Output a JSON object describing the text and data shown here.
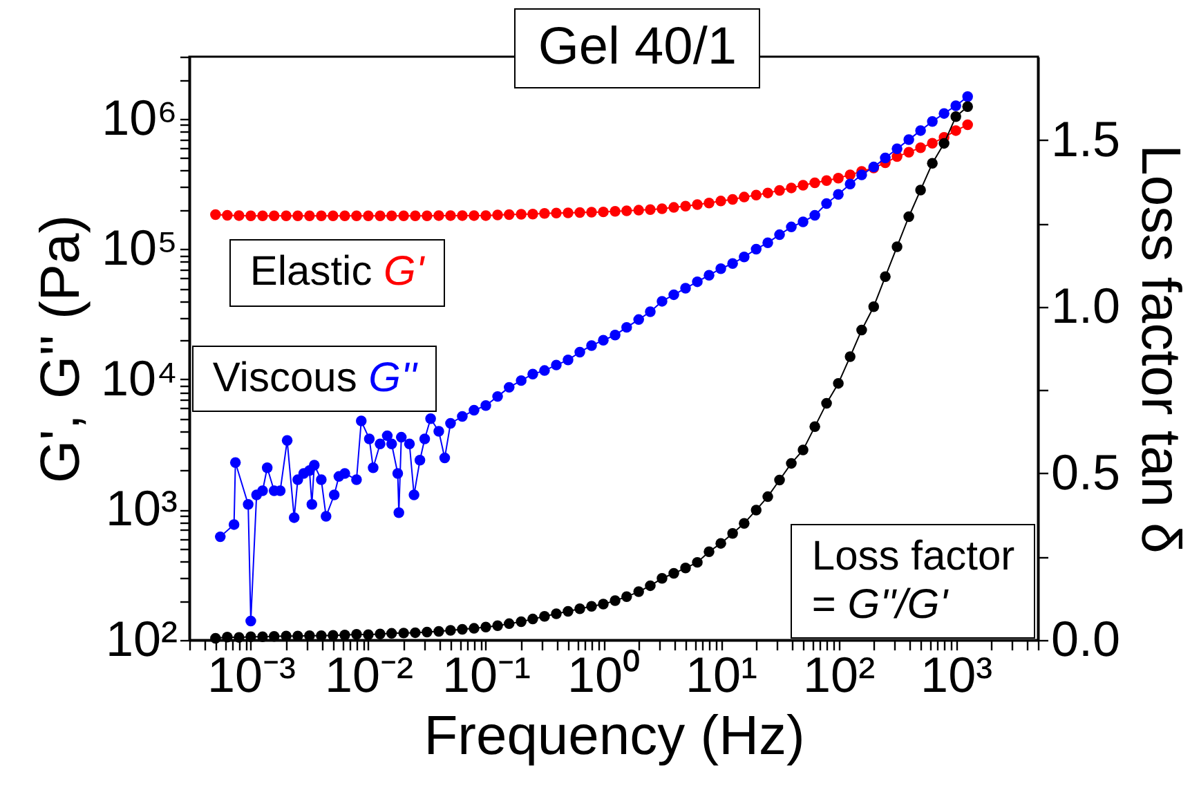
{
  "chart_data": {
    "type": "line",
    "title": "Gel 40/1",
    "xlabel": "Frequency (Hz)",
    "ylabel": "G', G'' (Pa)",
    "y2label": "Loss factor tan δ",
    "log": "xy",
    "marker": "circle",
    "xlim": [
      0.0003,
      5000
    ],
    "ylim": [
      100,
      3000000
    ],
    "y2lim": [
      0,
      1.75
    ],
    "xticks": [
      {
        "value": 0.0003,
        "label": null
      },
      {
        "value": 0.0004,
        "label": null
      },
      {
        "value": 0.0005,
        "label": null
      },
      {
        "value": 0.0006,
        "label": null
      },
      {
        "value": 0.0007,
        "label": null
      },
      {
        "value": 0.0008,
        "label": null
      },
      {
        "value": 0.0009,
        "label": null
      },
      {
        "value": 0.001,
        "label": "10⁻³"
      },
      {
        "value": 0.002,
        "label": null
      },
      {
        "value": 0.003,
        "label": null
      },
      {
        "value": 0.004,
        "label": null
      },
      {
        "value": 0.005,
        "label": null
      },
      {
        "value": 0.006,
        "label": null
      },
      {
        "value": 0.007,
        "label": null
      },
      {
        "value": 0.008,
        "label": null
      },
      {
        "value": 0.009,
        "label": null
      },
      {
        "value": 0.01,
        "label": "10⁻²"
      },
      {
        "value": 0.02,
        "label": null
      },
      {
        "value": 0.03,
        "label": null
      },
      {
        "value": 0.04,
        "label": null
      },
      {
        "value": 0.05,
        "label": null
      },
      {
        "value": 0.06,
        "label": null
      },
      {
        "value": 0.07,
        "label": null
      },
      {
        "value": 0.08,
        "label": null
      },
      {
        "value": 0.09,
        "label": null
      },
      {
        "value": 0.1,
        "label": "10⁻¹"
      },
      {
        "value": 0.2,
        "label": null
      },
      {
        "value": 0.3,
        "label": null
      },
      {
        "value": 0.4,
        "label": null
      },
      {
        "value": 0.5,
        "label": null
      },
      {
        "value": 0.6,
        "label": null
      },
      {
        "value": 0.7,
        "label": null
      },
      {
        "value": 0.8,
        "label": null
      },
      {
        "value": 0.9,
        "label": null
      },
      {
        "value": 1,
        "label": "10⁰"
      },
      {
        "value": 2,
        "label": null
      },
      {
        "value": 3,
        "label": null
      },
      {
        "value": 4,
        "label": null
      },
      {
        "value": 5,
        "label": null
      },
      {
        "value": 6,
        "label": null
      },
      {
        "value": 7,
        "label": null
      },
      {
        "value": 8,
        "label": null
      },
      {
        "value": 9,
        "label": null
      },
      {
        "value": 10,
        "label": "10¹"
      },
      {
        "value": 20,
        "label": null
      },
      {
        "value": 30,
        "label": null
      },
      {
        "value": 40,
        "label": null
      },
      {
        "value": 50,
        "label": null
      },
      {
        "value": 60,
        "label": null
      },
      {
        "value": 70,
        "label": null
      },
      {
        "value": 80,
        "label": null
      },
      {
        "value": 90,
        "label": null
      },
      {
        "value": 100,
        "label": "10²"
      },
      {
        "value": 200,
        "label": null
      },
      {
        "value": 300,
        "label": null
      },
      {
        "value": 400,
        "label": null
      },
      {
        "value": 500,
        "label": null
      },
      {
        "value": 600,
        "label": null
      },
      {
        "value": 700,
        "label": null
      },
      {
        "value": 800,
        "label": null
      },
      {
        "value": 900,
        "label": null
      },
      {
        "value": 1000,
        "label": "10³"
      },
      {
        "value": 2000,
        "label": null
      },
      {
        "value": 3000,
        "label": null
      },
      {
        "value": 4000,
        "label": null
      },
      {
        "value": 5000,
        "label": null
      }
    ],
    "yticks": [
      {
        "value": 100,
        "label": "10²"
      },
      {
        "value": 200,
        "label": null
      },
      {
        "value": 300,
        "label": null
      },
      {
        "value": 400,
        "label": null
      },
      {
        "value": 500,
        "label": null
      },
      {
        "value": 600,
        "label": null
      },
      {
        "value": 700,
        "label": null
      },
      {
        "value": 800,
        "label": null
      },
      {
        "value": 900,
        "label": null
      },
      {
        "value": 1000,
        "label": "10³"
      },
      {
        "value": 2000,
        "label": null
      },
      {
        "value": 3000,
        "label": null
      },
      {
        "value": 4000,
        "label": null
      },
      {
        "value": 5000,
        "label": null
      },
      {
        "value": 6000,
        "label": null
      },
      {
        "value": 7000,
        "label": null
      },
      {
        "value": 8000,
        "label": null
      },
      {
        "value": 9000,
        "label": null
      },
      {
        "value": 10000,
        "label": "10⁴"
      },
      {
        "value": 20000,
        "label": null
      },
      {
        "value": 30000,
        "label": null
      },
      {
        "value": 40000,
        "label": null
      },
      {
        "value": 50000,
        "label": null
      },
      {
        "value": 60000,
        "label": null
      },
      {
        "value": 70000,
        "label": null
      },
      {
        "value": 80000,
        "label": null
      },
      {
        "value": 90000,
        "label": null
      },
      {
        "value": 100000,
        "label": "10⁵"
      },
      {
        "value": 200000,
        "label": null
      },
      {
        "value": 300000,
        "label": null
      },
      {
        "value": 400000,
        "label": null
      },
      {
        "value": 500000,
        "label": null
      },
      {
        "value": 600000,
        "label": null
      },
      {
        "value": 700000,
        "label": null
      },
      {
        "value": 800000,
        "label": null
      },
      {
        "value": 900000,
        "label": null
      },
      {
        "value": 1000000,
        "label": "10⁶"
      },
      {
        "value": 2000000,
        "label": null
      },
      {
        "value": 3000000,
        "label": null
      }
    ],
    "y2ticks": [
      {
        "value": 0,
        "label": "0.0"
      },
      {
        "value": 0.25,
        "label": null
      },
      {
        "value": 0.5,
        "label": "0.5"
      },
      {
        "value": 0.75,
        "label": null
      },
      {
        "value": 1,
        "label": "1.0"
      },
      {
        "value": 1.25,
        "label": null
      },
      {
        "value": 1.5,
        "label": "1.5"
      }
    ],
    "x": [
      0.000501,
      0.000631,
      0.000794,
      0.001,
      0.00126,
      0.00158,
      0.002,
      0.00251,
      0.00316,
      0.00398,
      0.00501,
      0.00631,
      0.00794,
      0.01,
      0.0126,
      0.0158,
      0.02,
      0.0251,
      0.0316,
      0.0398,
      0.0501,
      0.0631,
      0.0794,
      0.1,
      0.126,
      0.158,
      0.2,
      0.251,
      0.316,
      0.398,
      0.501,
      0.631,
      0.794,
      1,
      1.26,
      1.58,
      2,
      2.51,
      3.16,
      3.98,
      5.01,
      6.31,
      7.94,
      10,
      12.6,
      15.8,
      20,
      25.1,
      31.6,
      39.8,
      50.1,
      63.1,
      79.4,
      100,
      126,
      158,
      200,
      251,
      316,
      398,
      501,
      631,
      794,
      1000,
      1260
    ],
    "series": [
      {
        "name": "Elastic G'",
        "color": "#ff0000",
        "values": [
          184000,
          182000,
          181000,
          180000,
          180000,
          180000,
          180000,
          180000,
          180000,
          180000,
          180000,
          180000,
          180000,
          180000,
          180000,
          180000,
          180000,
          180000,
          180000,
          181000,
          181000,
          181000,
          181000,
          181000,
          183000,
          184000,
          185000,
          186000,
          188000,
          189000,
          190000,
          191000,
          192000,
          193000,
          195000,
          197000,
          199000,
          201000,
          204000,
          209000,
          214000,
          220000,
          226000,
          234000,
          241000,
          251000,
          260000,
          270000,
          282000,
          295000,
          309000,
          323000,
          336000,
          351000,
          372000,
          395000,
          420000,
          460000,
          513000,
          555000,
          600000,
          650000,
          720000,
          813000,
          900000
        ]
      },
      {
        "name": "Viscous G''",
        "color": "#0000ff",
        "x": [
          0.00055,
          0.00072,
          0.00074,
          0.00095,
          0.001,
          0.00112,
          0.00126,
          0.00138,
          0.00158,
          0.00178,
          0.00204,
          0.00234,
          0.00251,
          0.00282,
          0.00316,
          0.00331,
          0.00347,
          0.00398,
          0.00437,
          0.00513,
          0.00562,
          0.00631,
          0.00794,
          0.00871,
          0.0102,
          0.011,
          0.0126,
          0.0145,
          0.0158,
          0.0178,
          0.0182,
          0.0191,
          0.0224,
          0.0245,
          0.0275,
          0.0302,
          0.0339,
          0.0398,
          0.0447,
          0.0501,
          0.0631,
          0.0794,
          0.1,
          0.126,
          0.158,
          0.2,
          0.251,
          0.316,
          0.398,
          0.501,
          0.631,
          0.794,
          1,
          1.26,
          1.58,
          2,
          2.51,
          3.16,
          3.98,
          5.01,
          6.31,
          7.94,
          10,
          12.6,
          15.8,
          20,
          25.1,
          31.6,
          39.8,
          50.1,
          63.1,
          79.4,
          100,
          126,
          158,
          200,
          251,
          316,
          398,
          501,
          631,
          794,
          1000,
          1260
        ],
        "values": [
          620,
          770,
          2300,
          1100,
          140,
          1300,
          1400,
          2100,
          1400,
          1400,
          3400,
          870,
          1700,
          1900,
          2000,
          1100,
          2200,
          1700,
          890,
          1300,
          1800,
          1900,
          1700,
          4800,
          3500,
          2100,
          3200,
          3700,
          3200,
          1900,
          950,
          3600,
          3200,
          1300,
          2400,
          3500,
          5000,
          4000,
          2500,
          4600,
          5200,
          5800,
          6300,
          7400,
          8700,
          9800,
          11000,
          11700,
          12900,
          14100,
          16200,
          18200,
          20000,
          21900,
          25100,
          28800,
          33100,
          39800,
          44700,
          50100,
          56200,
          63100,
          70800,
          77600,
          87100,
          100000,
          112000,
          129000,
          148000,
          162000,
          182000,
          224000,
          263000,
          316000,
          372000,
          427000,
          501000,
          589000,
          692000,
          813000,
          955000,
          1100000,
          1260000,
          1480000
        ]
      },
      {
        "name": "Loss factor = G''/G'",
        "color": "#000000",
        "axis": "y2",
        "values": [
          0.005,
          0.009,
          0.008,
          0.01,
          0.01,
          0.011,
          0.012,
          0.012,
          0.013,
          0.013,
          0.014,
          0.015,
          0.017,
          0.016,
          0.018,
          0.02,
          0.021,
          0.022,
          0.024,
          0.026,
          0.029,
          0.032,
          0.035,
          0.039,
          0.043,
          0.049,
          0.055,
          0.063,
          0.071,
          0.079,
          0.086,
          0.094,
          0.101,
          0.108,
          0.118,
          0.13,
          0.145,
          0.163,
          0.185,
          0.2,
          0.216,
          0.233,
          0.265,
          0.29,
          0.32,
          0.35,
          0.39,
          0.43,
          0.48,
          0.53,
          0.57,
          0.64,
          0.71,
          0.77,
          0.85,
          0.93,
          1.0,
          1.09,
          1.18,
          1.27,
          1.35,
          1.43,
          1.49,
          1.57,
          1.6
        ]
      }
    ]
  }
}
